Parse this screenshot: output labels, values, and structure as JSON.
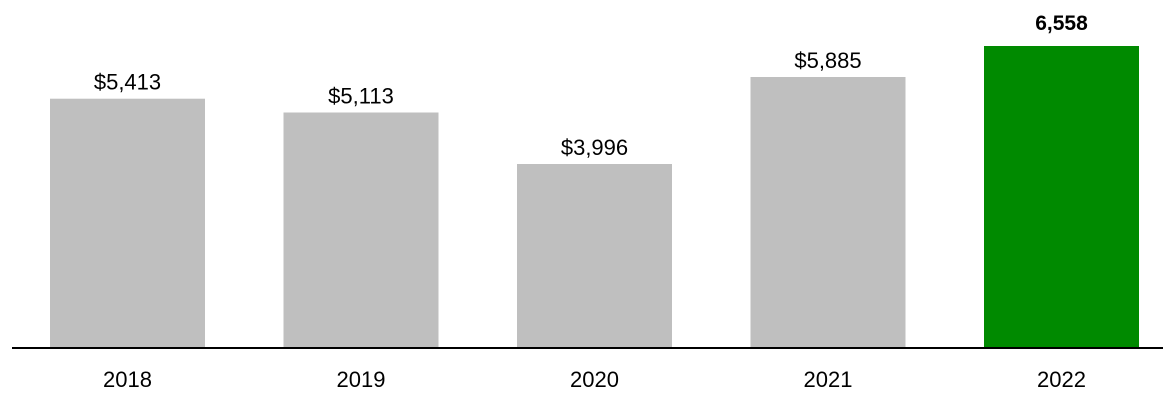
{
  "chart_data": {
    "type": "bar",
    "title": "",
    "xlabel": "",
    "ylabel": "",
    "categories": [
      "2018",
      "2019",
      "2020",
      "2021",
      "2022"
    ],
    "values": [
      5413,
      5113,
      3996,
      5885,
      6558
    ],
    "data_labels": [
      "$5,413",
      "$5,113",
      "$3,996",
      "$5,885",
      "6,558"
    ],
    "highlight_index": 4,
    "ylim": [
      0,
      6558
    ],
    "grid": false,
    "legend": "none",
    "colors": {
      "bar": "#bfbfbf",
      "highlight": "#008a00",
      "axis": "#000000",
      "text": "#000000"
    }
  }
}
